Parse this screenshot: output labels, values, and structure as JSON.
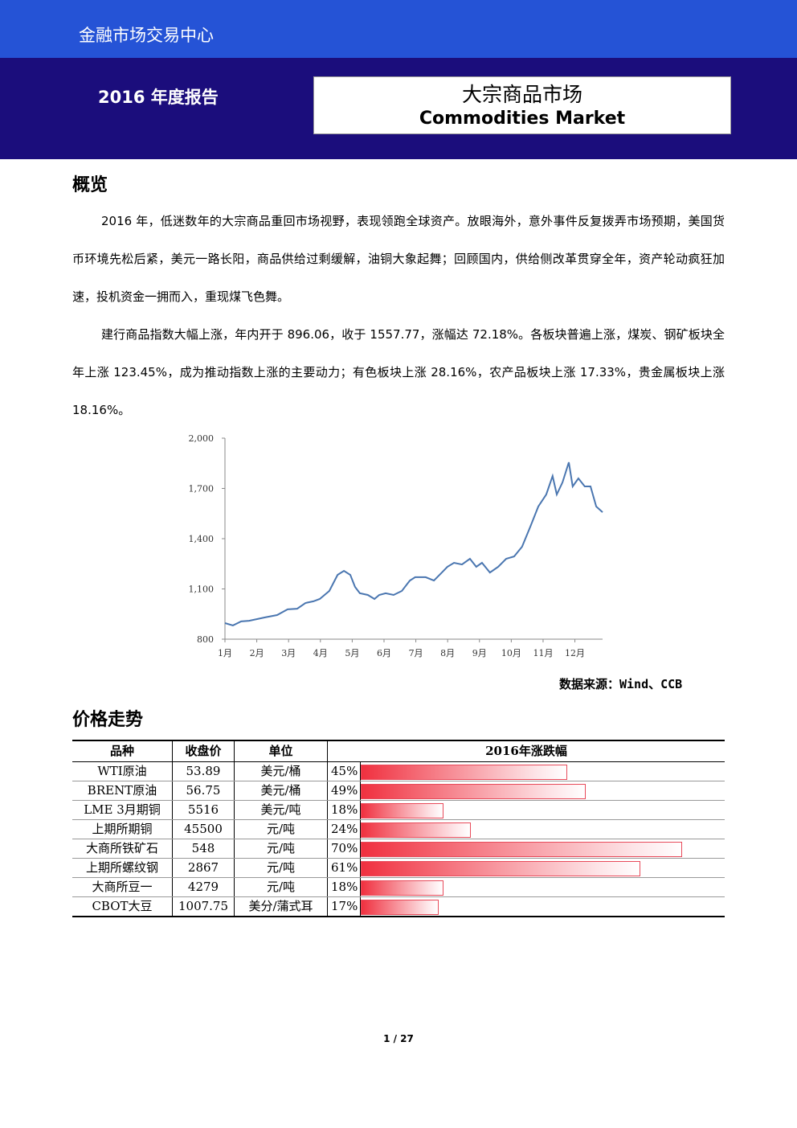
{
  "header": {
    "org": "金融市场交易中心",
    "report": "2016 年度报告",
    "title_cn": "大宗商品市场",
    "title_en": "Commodities Market"
  },
  "overview": {
    "heading": "概览",
    "paragraphs": [
      "2016 年，低迷数年的大宗商品重回市场视野，表现领跑全球资产。放眼海外，意外事件反复拨弄市场预期，美国货币环境先松后紧，美元一路长阳，商品供给过剩缓解，油铜大象起舞；回顾国内，供给侧改革贯穿全年，资产轮动疯狂加速，投机资金一拥而入，重现煤飞色舞。",
      "建行商品指数大幅上涨，年内开于 896.06，收于 1557.77，涨幅达 72.18%。各板块普遍上涨，煤炭、钢矿板块全年上涨 123.45%，成为推动指数上涨的主要动力；有色板块上涨 28.16%，农产品板块上涨 17.33%，贵金属板块上涨 18.16%。"
    ]
  },
  "chart_data": {
    "type": "line",
    "color": "#4a76b0",
    "x": [
      0,
      0.25,
      0.51,
      0.76,
      1.01,
      1.26,
      1.64,
      1.97,
      2.27,
      2.53,
      2.78,
      2.98,
      3.28,
      3.54,
      3.74,
      3.94,
      4.09,
      4.24,
      4.49,
      4.7,
      4.85,
      5.05,
      5.3,
      5.56,
      5.81,
      5.98,
      6.31,
      6.57,
      6.82,
      6.99,
      7.2,
      7.45,
      7.7,
      7.9,
      8.08,
      8.33,
      8.59,
      8.84,
      9.09,
      9.34,
      9.6,
      9.85,
      10.1,
      10.3,
      10.43,
      10.61,
      10.81,
      10.93,
      11.11,
      11.31,
      11.49,
      11.67,
      11.87
    ],
    "values": [
      896,
      882,
      906,
      910,
      920,
      930,
      944,
      978,
      982,
      1016,
      1026,
      1040,
      1088,
      1184,
      1208,
      1184,
      1112,
      1074,
      1064,
      1040,
      1064,
      1074,
      1064,
      1088,
      1150,
      1170,
      1170,
      1150,
      1198,
      1232,
      1256,
      1246,
      1280,
      1232,
      1256,
      1198,
      1232,
      1280,
      1294,
      1352,
      1472,
      1592,
      1664,
      1774,
      1664,
      1736,
      1856,
      1712,
      1760,
      1712,
      1712,
      1592,
      1558
    ],
    "xlim": [
      0,
      11.87
    ],
    "xticks": [
      {
        "value": 0,
        "label": "1月"
      },
      {
        "value": 1,
        "label": "2月"
      },
      {
        "value": 2,
        "label": "3月"
      },
      {
        "value": 3,
        "label": "4月"
      },
      {
        "value": 4,
        "label": "5月"
      },
      {
        "value": 5,
        "label": "6月"
      },
      {
        "value": 6,
        "label": "7月"
      },
      {
        "value": 7,
        "label": "8月"
      },
      {
        "value": 8,
        "label": "9月"
      },
      {
        "value": 9,
        "label": "10月"
      },
      {
        "value": 10,
        "label": "11月"
      },
      {
        "value": 11,
        "label": "12月"
      }
    ],
    "ylim": [
      800,
      2000
    ],
    "yticks": [
      800,
      {
        "value": 1100,
        "label": "1,100"
      },
      {
        "value": 1400,
        "label": "1,400"
      },
      {
        "value": 1700,
        "label": "1,700"
      },
      {
        "value": 2000,
        "label": "2,000"
      }
    ]
  },
  "source": "数据来源：Wind、CCB",
  "prices": {
    "heading": "价格走势",
    "columns": [
      "品种",
      "收盘价",
      "单位",
      "2016年涨跌幅"
    ],
    "rows": [
      {
        "name": "WTI原油",
        "price": "53.89",
        "unit": "美元/桶",
        "change": 45,
        "change_label": "45%"
      },
      {
        "name": "BRENT原油",
        "price": "56.75",
        "unit": "美元/桶",
        "change": 49,
        "change_label": "49%"
      },
      {
        "name": "LME 3月期铜",
        "price": "5516",
        "unit": "美元/吨",
        "change": 18,
        "change_label": "18%"
      },
      {
        "name": "上期所期铜",
        "price": "45500",
        "unit": "元/吨",
        "change": 24,
        "change_label": "24%"
      },
      {
        "name": "大商所铁矿石",
        "price": "548",
        "unit": "元/吨",
        "change": 70,
        "change_label": "70%"
      },
      {
        "name": "上期所螺纹钢",
        "price": "2867",
        "unit": "元/吨",
        "change": 61,
        "change_label": "61%"
      },
      {
        "name": "大商所豆一",
        "price": "4279",
        "unit": "元/吨",
        "change": 18,
        "change_label": "18%"
      },
      {
        "name": "CBOT大豆",
        "price": "1007.75",
        "unit": "美分/蒲式耳",
        "change": 17,
        "change_label": "17%"
      }
    ]
  },
  "footer": {
    "page": "1 / 27"
  }
}
